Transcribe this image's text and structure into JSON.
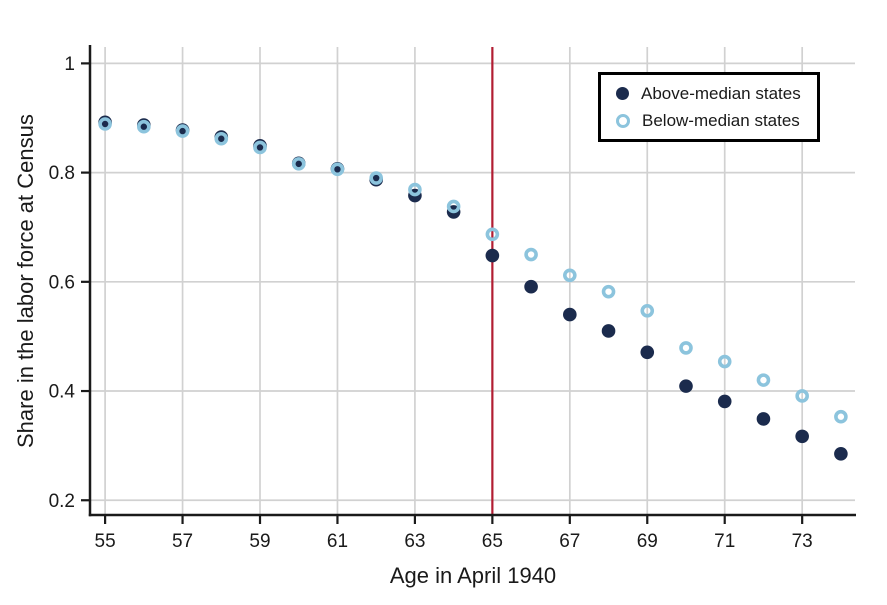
{
  "colors": {
    "above_median": "#1b2b4d",
    "below_median": "#8cc4dd",
    "reference_line": "#b21d32",
    "grid": "#d1d1d1",
    "axis": "#1a1a1a",
    "text": "#1a1a1a",
    "legend_border": "#000000",
    "background": "#ffffff"
  },
  "legend": {
    "items": [
      {
        "label": "Above-median states",
        "marker": "filled-circle",
        "color": "#1b2b4d"
      },
      {
        "label": "Below-median states",
        "marker": "open-circle",
        "color": "#8cc4dd"
      }
    ]
  },
  "chart_data": {
    "type": "scatter",
    "title": "",
    "xlabel": "Age in April 1940",
    "ylabel": "Share in the labor force at Census",
    "x": [
      55,
      56,
      57,
      58,
      59,
      60,
      61,
      62,
      63,
      64,
      65,
      66,
      67,
      68,
      69,
      70,
      71,
      72,
      73,
      74
    ],
    "series": [
      {
        "name": "Above-median states",
        "marker": "filled-circle",
        "color": "#1b2b4d",
        "values": [
          0.892,
          0.887,
          0.878,
          0.865,
          0.849,
          0.817,
          0.807,
          0.787,
          0.758,
          0.728,
          0.648,
          0.591,
          0.54,
          0.51,
          0.471,
          0.409,
          0.381,
          0.349,
          0.317,
          0.285
        ]
      },
      {
        "name": "Below-median states",
        "marker": "open-circle",
        "color": "#8cc4dd",
        "values": [
          0.889,
          0.884,
          0.876,
          0.862,
          0.846,
          0.816,
          0.806,
          0.79,
          0.769,
          0.738,
          0.687,
          0.65,
          0.612,
          0.582,
          0.547,
          0.479,
          0.454,
          0.42,
          0.391,
          0.353
        ]
      }
    ],
    "xticks": [
      55,
      57,
      59,
      61,
      63,
      65,
      67,
      69,
      71,
      73
    ],
    "xtick_labels": [
      "55",
      "57",
      "59",
      "61",
      "63",
      "65",
      "67",
      "69",
      "71",
      "73"
    ],
    "yticks": [
      0.2,
      0.4,
      0.6,
      0.8,
      1
    ],
    "ytick_labels": [
      "0.2",
      "0.4",
      "0.6",
      "0.8",
      "1"
    ],
    "xlim": [
      54.61,
      74.39
    ],
    "ylim": [
      0.173,
      1.03
    ],
    "grid": true,
    "legend_position": "top-right",
    "vline": {
      "x": 65,
      "color": "#b21d32"
    }
  }
}
